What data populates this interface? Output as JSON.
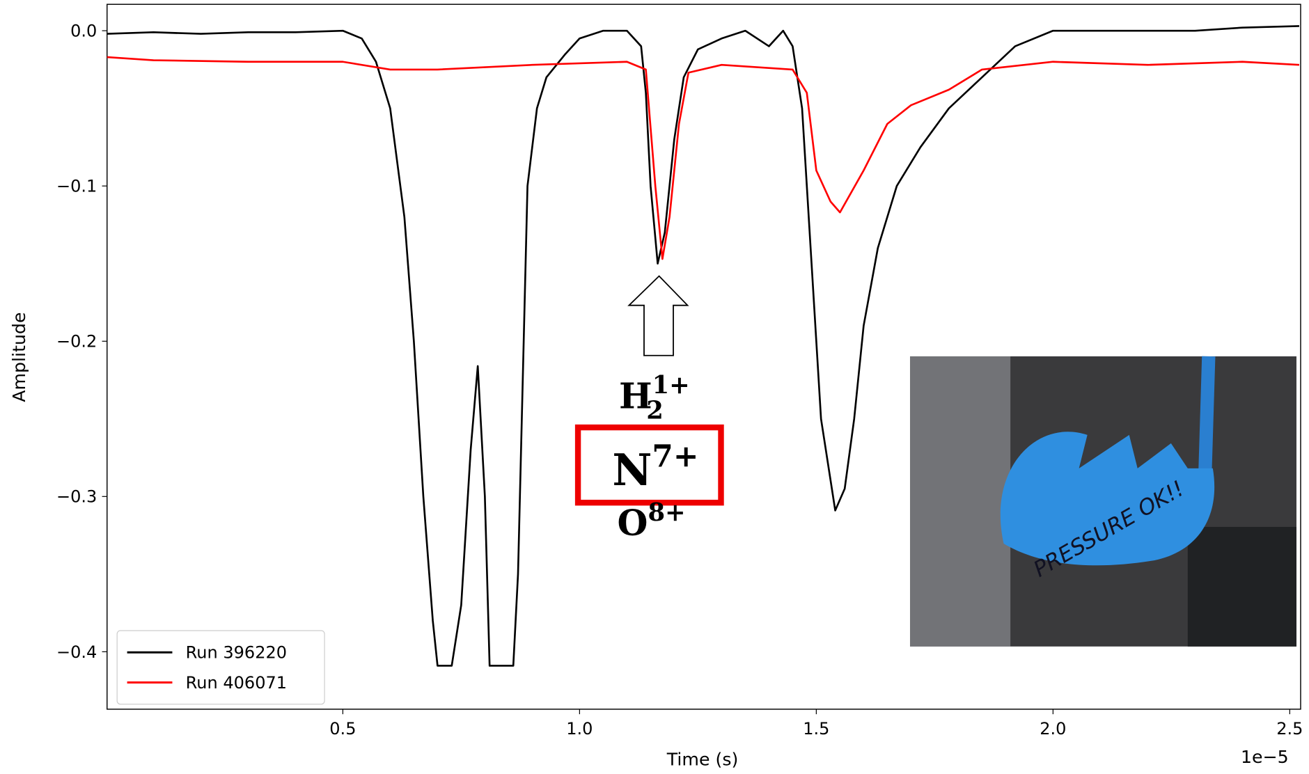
{
  "chart_data": {
    "type": "line",
    "x_label": "Time (s)",
    "y_label": "Amplitude",
    "x_offset_text": "1e−5",
    "xlim": [
      0.002,
      2.523
    ],
    "ylim": [
      -0.437,
      0.017
    ],
    "xticks": [
      0.5,
      {
        "value": 1,
        "label": "1.0"
      },
      1.5,
      {
        "value": 2,
        "label": "2.0"
      },
      2.5
    ],
    "yticks": [
      {
        "value": 0,
        "label": "0.0"
      },
      {
        "value": -0.1,
        "label": "−0.1"
      },
      {
        "value": -0.2,
        "label": "−0.2"
      },
      {
        "value": -0.3,
        "label": "−0.3"
      },
      {
        "value": -0.4,
        "label": "−0.4"
      }
    ],
    "legend_position": "lower left",
    "series": [
      {
        "name": "Run 396220",
        "color": "#000000",
        "x": [
          0.002,
          0.1,
          0.2,
          0.3,
          0.4,
          0.5,
          0.54,
          0.57,
          0.6,
          0.63,
          0.65,
          0.67,
          0.69,
          0.7,
          0.73,
          0.75,
          0.77,
          0.785,
          0.8,
          0.81,
          0.86,
          0.87,
          0.89,
          0.91,
          0.93,
          0.97,
          1.0,
          1.05,
          1.1,
          1.13,
          1.14,
          1.15,
          1.165,
          1.18,
          1.2,
          1.22,
          1.25,
          1.3,
          1.35,
          1.4,
          1.43,
          1.45,
          1.47,
          1.49,
          1.51,
          1.54,
          1.56,
          1.58,
          1.6,
          1.63,
          1.67,
          1.72,
          1.78,
          1.85,
          1.92,
          2.0,
          2.1,
          2.2,
          2.3,
          2.4,
          2.52
        ],
        "values": [
          -0.002,
          -0.001,
          -0.002,
          -0.001,
          -0.001,
          0.0,
          -0.005,
          -0.02,
          -0.05,
          -0.12,
          -0.2,
          -0.3,
          -0.38,
          -0.409,
          -0.409,
          -0.37,
          -0.27,
          -0.216,
          -0.3,
          -0.409,
          -0.409,
          -0.35,
          -0.1,
          -0.05,
          -0.03,
          -0.015,
          -0.005,
          0.0,
          0.0,
          -0.01,
          -0.04,
          -0.1,
          -0.15,
          -0.13,
          -0.07,
          -0.03,
          -0.012,
          -0.005,
          0.0,
          -0.01,
          0.0,
          -0.01,
          -0.05,
          -0.15,
          -0.25,
          -0.309,
          -0.295,
          -0.25,
          -0.19,
          -0.14,
          -0.1,
          -0.075,
          -0.05,
          -0.03,
          -0.01,
          0.0,
          0.0,
          0.0,
          0.0,
          0.002,
          0.003
        ]
      },
      {
        "name": "Run 406071",
        "color": "#ff0000",
        "x": [
          0.002,
          0.1,
          0.3,
          0.5,
          0.6,
          0.7,
          0.9,
          1.1,
          1.14,
          1.16,
          1.175,
          1.19,
          1.21,
          1.23,
          1.3,
          1.45,
          1.48,
          1.5,
          1.53,
          1.55,
          1.6,
          1.65,
          1.7,
          1.78,
          1.85,
          2.0,
          2.2,
          2.4,
          2.52
        ],
        "values": [
          -0.017,
          -0.019,
          -0.02,
          -0.02,
          -0.025,
          -0.025,
          -0.022,
          -0.02,
          -0.025,
          -0.1,
          -0.147,
          -0.12,
          -0.06,
          -0.027,
          -0.022,
          -0.025,
          -0.04,
          -0.09,
          -0.11,
          -0.117,
          -0.09,
          -0.06,
          -0.048,
          -0.038,
          -0.025,
          -0.02,
          -0.022,
          -0.02,
          -0.022
        ]
      }
    ],
    "annotations": [
      {
        "base": "H",
        "sub": "2",
        "sup": "1+"
      },
      {
        "base": "N",
        "sup": "7+"
      },
      {
        "base": "O",
        "sup": "8+"
      }
    ],
    "inset_photo_text": "PRESSURE OK!!"
  }
}
